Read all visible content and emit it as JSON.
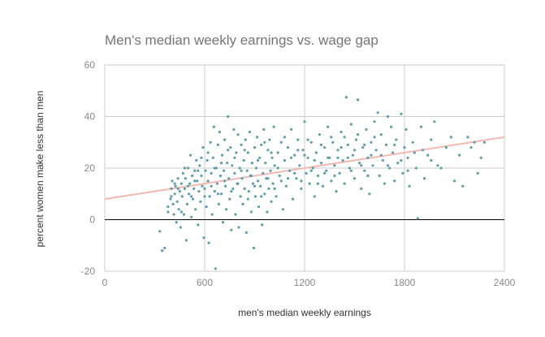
{
  "chart_data": {
    "type": "scatter",
    "title": "Men's median weekly earnings vs. wage gap",
    "xlabel": "men's median weekly earnings",
    "ylabel": "percent women make less than men",
    "xlim": [
      0,
      2400
    ],
    "ylim": [
      -20,
      60
    ],
    "xticks": [
      "0",
      "600",
      "1200",
      "1800",
      "2400"
    ],
    "yticks": [
      "-20",
      "0",
      "20",
      "40",
      "60"
    ],
    "grid": true,
    "legend": "none",
    "point_color": "#5f9ea8",
    "trend_color": "#f4b8b2",
    "zero_line_color": "#000000",
    "trendline": {
      "x": [
        0,
        2400
      ],
      "y": [
        8,
        32
      ]
    },
    "points": [
      [
        330,
        -4.5
      ],
      [
        345,
        -12
      ],
      [
        360,
        -11
      ],
      [
        380,
        3
      ],
      [
        395,
        8
      ],
      [
        400,
        12
      ],
      [
        405,
        15
      ],
      [
        410,
        6
      ],
      [
        415,
        2
      ],
      [
        420,
        10
      ],
      [
        425,
        13
      ],
      [
        430,
        -1
      ],
      [
        435,
        7
      ],
      [
        440,
        16
      ],
      [
        445,
        4
      ],
      [
        450,
        11
      ],
      [
        455,
        -3
      ],
      [
        460,
        14
      ],
      [
        465,
        9
      ],
      [
        470,
        18
      ],
      [
        475,
        2
      ],
      [
        480,
        12
      ],
      [
        485,
        16
      ],
      [
        490,
        -8
      ],
      [
        495,
        6
      ],
      [
        500,
        20
      ],
      [
        505,
        10
      ],
      [
        510,
        14
      ],
      [
        515,
        25
      ],
      [
        520,
        1
      ],
      [
        525,
        17
      ],
      [
        530,
        8
      ],
      [
        535,
        12
      ],
      [
        540,
        19
      ],
      [
        545,
        4
      ],
      [
        550,
        23
      ],
      [
        555,
        15
      ],
      [
        560,
        -2
      ],
      [
        565,
        11
      ],
      [
        570,
        21
      ],
      [
        575,
        7
      ],
      [
        580,
        17
      ],
      [
        585,
        13
      ],
      [
        590,
        28
      ],
      [
        595,
        -7
      ],
      [
        600,
        12
      ],
      [
        605,
        19
      ],
      [
        610,
        5
      ],
      [
        615,
        23
      ],
      [
        620,
        15
      ],
      [
        625,
        -9
      ],
      [
        630,
        9
      ],
      [
        635,
        30
      ],
      [
        640,
        18
      ],
      [
        645,
        2
      ],
      [
        650,
        24
      ],
      [
        655,
        36
      ],
      [
        660,
        11
      ],
      [
        665,
        -19
      ],
      [
        670,
        20
      ],
      [
        675,
        14
      ],
      [
        680,
        29
      ],
      [
        685,
        6
      ],
      [
        690,
        34
      ],
      [
        695,
        17
      ],
      [
        700,
        10
      ],
      [
        705,
        25
      ],
      [
        710,
        -1
      ],
      [
        715,
        19
      ],
      [
        720,
        31
      ],
      [
        725,
        13
      ],
      [
        730,
        4
      ],
      [
        735,
        22
      ],
      [
        740,
        40
      ],
      [
        745,
        16
      ],
      [
        750,
        8
      ],
      [
        755,
        28
      ],
      [
        760,
        -4
      ],
      [
        765,
        21
      ],
      [
        770,
        12
      ],
      [
        775,
        35
      ],
      [
        780,
        18
      ],
      [
        785,
        2
      ],
      [
        790,
        26
      ],
      [
        795,
        14
      ],
      [
        800,
        33
      ],
      [
        805,
        -3
      ],
      [
        810,
        20
      ],
      [
        815,
        9
      ],
      [
        820,
        29
      ],
      [
        825,
        16
      ],
      [
        830,
        6
      ],
      [
        835,
        23
      ],
      [
        840,
        12
      ],
      [
        845,
        31
      ],
      [
        850,
        -5
      ],
      [
        855,
        19
      ],
      [
        860,
        26
      ],
      [
        865,
        11
      ],
      [
        870,
        34
      ],
      [
        875,
        17
      ],
      [
        880,
        3
      ],
      [
        885,
        22
      ],
      [
        890,
        14
      ],
      [
        895,
        -11
      ],
      [
        900,
        28
      ],
      [
        905,
        9
      ],
      [
        910,
        20
      ],
      [
        915,
        32
      ],
      [
        920,
        15
      ],
      [
        925,
        5
      ],
      [
        930,
        24
      ],
      [
        935,
        13
      ],
      [
        940,
        29
      ],
      [
        945,
        -2
      ],
      [
        950,
        18
      ],
      [
        955,
        35
      ],
      [
        960,
        10
      ],
      [
        965,
        22
      ],
      [
        970,
        16
      ],
      [
        975,
        3
      ],
      [
        980,
        27
      ],
      [
        985,
        12
      ],
      [
        990,
        31
      ],
      [
        995,
        19
      ],
      [
        1000,
        7
      ],
      [
        1005,
        24
      ],
      [
        1010,
        14
      ],
      [
        1015,
        36
      ],
      [
        1020,
        21
      ],
      [
        1030,
        9
      ],
      [
        1040,
        26
      ],
      [
        1050,
        17
      ],
      [
        1060,
        30
      ],
      [
        1070,
        4
      ],
      [
        1080,
        23
      ],
      [
        1090,
        13
      ],
      [
        1100,
        28
      ],
      [
        1110,
        19
      ],
      [
        1120,
        35
      ],
      [
        1130,
        8
      ],
      [
        1140,
        25
      ],
      [
        1150,
        16
      ],
      [
        1160,
        31
      ],
      [
        1170,
        21
      ],
      [
        1180,
        12
      ],
      [
        1190,
        27
      ],
      [
        1200,
        38
      ],
      [
        1210,
        18
      ],
      [
        1220,
        24
      ],
      [
        1230,
        14
      ],
      [
        1240,
        30
      ],
      [
        1250,
        20
      ],
      [
        1260,
        9
      ],
      [
        1270,
        26
      ],
      [
        1280,
        17
      ],
      [
        1290,
        33
      ],
      [
        1300,
        22
      ],
      [
        1310,
        13
      ],
      [
        1320,
        28
      ],
      [
        1330,
        19
      ],
      [
        1340,
        36
      ],
      [
        1350,
        24
      ],
      [
        1360,
        15
      ],
      [
        1370,
        30
      ],
      [
        1380,
        21
      ],
      [
        1390,
        11
      ],
      [
        1400,
        27
      ],
      [
        1410,
        18
      ],
      [
        1420,
        34
      ],
      [
        1430,
        23
      ],
      [
        1440,
        14
      ],
      [
        1450,
        47.5
      ],
      [
        1460,
        29
      ],
      [
        1470,
        20
      ],
      [
        1480,
        37
      ],
      [
        1490,
        25
      ],
      [
        1500,
        16
      ],
      [
        1510,
        31
      ],
      [
        1520,
        46.5
      ],
      [
        1530,
        22
      ],
      [
        1540,
        12
      ],
      [
        1550,
        28
      ],
      [
        1560,
        19
      ],
      [
        1570,
        35
      ],
      [
        1580,
        24
      ],
      [
        1590,
        10
      ],
      [
        1600,
        30
      ],
      [
        1610,
        21
      ],
      [
        1620,
        38
      ],
      [
        1630,
        27
      ],
      [
        1640,
        41.5
      ],
      [
        1650,
        17
      ],
      [
        1660,
        33
      ],
      [
        1670,
        23
      ],
      [
        1680,
        14
      ],
      [
        1690,
        29
      ],
      [
        1700,
        40
      ],
      [
        1710,
        20
      ],
      [
        1720,
        36
      ],
      [
        1730,
        26
      ],
      [
        1740,
        15
      ],
      [
        1750,
        31
      ],
      [
        1760,
        22
      ],
      [
        1780,
        41
      ],
      [
        1790,
        18
      ],
      [
        1800,
        28
      ],
      [
        1810,
        35
      ],
      [
        1820,
        24
      ],
      [
        1830,
        13
      ],
      [
        1850,
        30
      ],
      [
        1870,
        20
      ],
      [
        1880,
        0.5
      ],
      [
        1900,
        36
      ],
      [
        1910,
        27
      ],
      [
        1920,
        16
      ],
      [
        1940,
        25
      ],
      [
        1960,
        31
      ],
      [
        1980,
        38
      ],
      [
        2000,
        21
      ],
      [
        2020,
        20
      ],
      [
        2050,
        28
      ],
      [
        2080,
        32
      ],
      [
        2100,
        15
      ],
      [
        2130,
        25
      ],
      [
        2150,
        13
      ],
      [
        2180,
        32
      ],
      [
        2200,
        28
      ],
      [
        2220,
        30
      ],
      [
        2240,
        18
      ],
      [
        2260,
        24
      ],
      [
        2280,
        30
      ],
      [
        380,
        5
      ],
      [
        400,
        9
      ],
      [
        420,
        14
      ],
      [
        440,
        12
      ],
      [
        460,
        3
      ],
      [
        480,
        20
      ],
      [
        500,
        13
      ],
      [
        520,
        9
      ],
      [
        540,
        15
      ],
      [
        560,
        19
      ],
      [
        580,
        24
      ],
      [
        600,
        9
      ],
      [
        620,
        26
      ],
      [
        640,
        13
      ],
      [
        660,
        20
      ],
      [
        680,
        10
      ],
      [
        700,
        22
      ],
      [
        720,
        15
      ],
      [
        740,
        27
      ],
      [
        760,
        11
      ],
      [
        780,
        24
      ],
      [
        800,
        14
      ],
      [
        820,
        19
      ],
      [
        840,
        27
      ],
      [
        860,
        8
      ],
      [
        880,
        17
      ],
      [
        900,
        13
      ],
      [
        920,
        23
      ],
      [
        940,
        9
      ],
      [
        960,
        30
      ],
      [
        980,
        16
      ],
      [
        1000,
        26
      ],
      [
        1020,
        12
      ],
      [
        1040,
        20
      ],
      [
        1060,
        15
      ],
      [
        1080,
        32
      ],
      [
        1100,
        16
      ],
      [
        1120,
        24
      ],
      [
        1140,
        18
      ],
      [
        1160,
        27
      ],
      [
        1180,
        15
      ],
      [
        1200,
        25
      ],
      [
        1220,
        31
      ],
      [
        1240,
        19
      ],
      [
        1260,
        23
      ],
      [
        1280,
        14
      ],
      [
        1300,
        29
      ],
      [
        1320,
        18
      ],
      [
        1340,
        24
      ],
      [
        1360,
        32
      ],
      [
        1380,
        17
      ],
      [
        1400,
        24
      ],
      [
        1420,
        28
      ],
      [
        1440,
        32
      ],
      [
        1460,
        24
      ],
      [
        1480,
        19
      ],
      [
        1500,
        27
      ],
      [
        1520,
        33
      ],
      [
        1540,
        21
      ],
      [
        1560,
        29
      ],
      [
        1580,
        17
      ],
      [
        1600,
        25
      ],
      [
        1620,
        32
      ],
      [
        1660,
        25
      ],
      [
        1700,
        21
      ],
      [
        1740,
        29
      ],
      [
        1780,
        23
      ],
      [
        1820,
        19
      ],
      [
        1860,
        26
      ],
      [
        1960,
        23
      ]
    ]
  }
}
